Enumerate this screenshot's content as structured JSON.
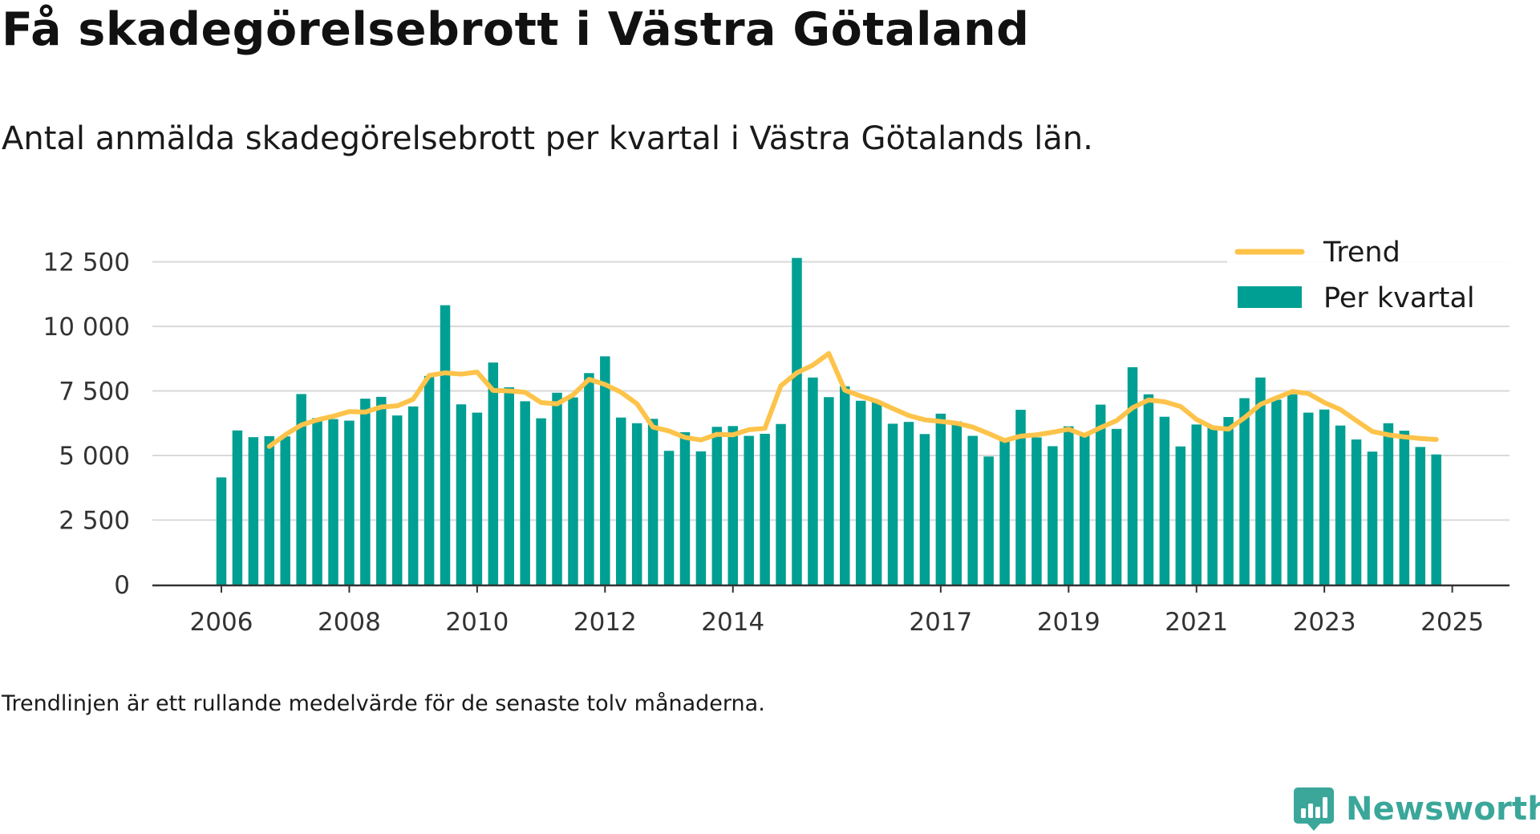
{
  "title": "Få skadegörelsebrott i Västra Götaland",
  "subtitle": "Antal anmälda skadegörelsebrott per kvartal i Västra Götalands län.",
  "footnote": "Trendlinjen är ett rullande medelvärde för de senaste tolv månaderna.",
  "brand": {
    "name": "Newsworthy",
    "icon": "newsworthy-logo-icon"
  },
  "colors": {
    "bar": "#009f93",
    "trend": "#fdc34a",
    "grid": "#d9d9d9",
    "axis": "#333333",
    "brand": "#3aa79a"
  },
  "chart_data": {
    "type": "bar",
    "x_start": "2006-Q1",
    "x_interval": "quarter",
    "ylim": [
      0,
      13000
    ],
    "y_ticks": [
      0,
      2500,
      5000,
      7500,
      10000,
      12500
    ],
    "y_tick_labels": [
      "0",
      "2 500",
      "5 000",
      "7 500",
      "10 000",
      "12 500"
    ],
    "x_ticks": [
      "2006",
      "2008",
      "2010",
      "2012",
      "2014",
      "2017",
      "2019",
      "2021",
      "2023",
      "2025"
    ],
    "x_tick_positions": [
      "2006-Q1",
      "2008-Q1",
      "2010-Q1",
      "2012-Q1",
      "2014-Q1",
      "2017-Q2",
      "2019-Q2",
      "2021-Q2",
      "2023-Q2",
      "2025-Q2"
    ],
    "grid": true,
    "legend_position": "top-right",
    "legend": [
      "Trend",
      "Per kvartal"
    ],
    "series": [
      {
        "name": "Per kvartal",
        "type": "bar",
        "values": [
          4150,
          5970,
          5710,
          5750,
          5740,
          7380,
          6450,
          6410,
          6350,
          7200,
          7270,
          6550,
          6900,
          8080,
          10820,
          6980,
          6660,
          8600,
          7640,
          7100,
          6440,
          7430,
          7250,
          8190,
          8840,
          6470,
          6250,
          6420,
          5180,
          5900,
          5160,
          6110,
          6140,
          5760,
          5840,
          6220,
          12650,
          8020,
          7260,
          7680,
          7120,
          7090,
          6230,
          6300,
          5830,
          6620,
          6320,
          5760,
          4960,
          5600,
          6770,
          5700,
          5360,
          6130,
          5810,
          6970,
          6030,
          8420,
          7370,
          6500,
          5350,
          6200,
          6100,
          6490,
          7220,
          8020,
          7160,
          7370,
          6660,
          6780,
          6160,
          5620,
          5150,
          6250,
          5960,
          5330,
          5040
        ]
      },
      {
        "name": "Trend",
        "type": "line",
        "start": "2006-Q4",
        "values": [
          5350,
          5800,
          6180,
          6380,
          6520,
          6700,
          6680,
          6880,
          6920,
          7180,
          8100,
          8200,
          8150,
          8230,
          7520,
          7500,
          7450,
          7050,
          7000,
          7350,
          7950,
          7750,
          7450,
          7000,
          6100,
          5950,
          5700,
          5600,
          5820,
          5800,
          6000,
          6050,
          7700,
          8200,
          8500,
          8950,
          7530,
          7300,
          7100,
          6820,
          6550,
          6380,
          6320,
          6250,
          6100,
          5850,
          5580,
          5750,
          5800,
          5900,
          6020,
          5780,
          6080,
          6350,
          6850,
          7150,
          7080,
          6900,
          6400,
          6080,
          6020,
          6460,
          6980,
          7230,
          7480,
          7400,
          7050,
          6780,
          6350,
          5930,
          5800,
          5720,
          5660,
          5620
        ]
      }
    ]
  }
}
